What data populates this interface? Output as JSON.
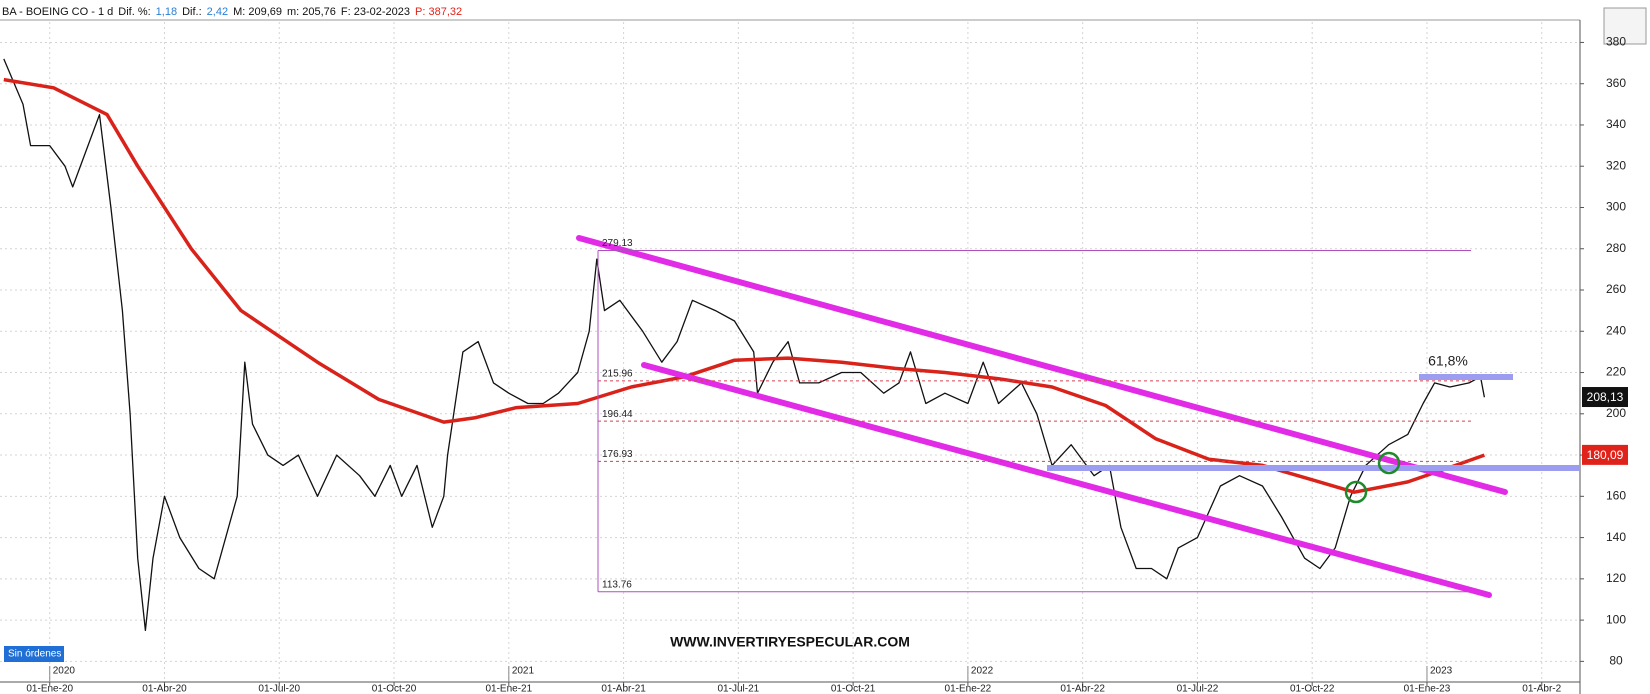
{
  "chart_data": {
    "type": "line",
    "header": [
      "BA - BOEING CO - 1 d",
      "Dif. %:",
      "1,18",
      "Dif.:",
      "2,42",
      "M: 209,69",
      "m: 205,76",
      "F: 23-02-2023",
      "P: 387,32"
    ],
    "xlim": [
      -1.3,
      40
    ],
    "xticks": [
      {
        "value": 0,
        "label": "01-Ene-20"
      },
      {
        "value": 3,
        "label": "01-Abr-20"
      },
      {
        "value": 6,
        "label": "01-Jul-20"
      },
      {
        "value": 9,
        "label": "01-Oct-20"
      },
      {
        "value": 12,
        "label": "01-Ene-21"
      },
      {
        "value": 15,
        "label": "01-Abr-21"
      },
      {
        "value": 18,
        "label": "01-Jul-21"
      },
      {
        "value": 21,
        "label": "01-Oct-21"
      },
      {
        "value": 24,
        "label": "01-Ene-22"
      },
      {
        "value": 27,
        "label": "01-Abr-22"
      },
      {
        "value": 30,
        "label": "01-Jul-22"
      },
      {
        "value": 33,
        "label": "01-Oct-22"
      },
      {
        "value": 36,
        "label": "01-Ene-23"
      },
      {
        "value": 39,
        "label": "01-Abr-2"
      }
    ],
    "year_ticks": [
      {
        "value": 0,
        "label": "2020"
      },
      {
        "value": 12,
        "label": "2021"
      },
      {
        "value": 24,
        "label": "2022"
      },
      {
        "value": 36,
        "label": "2023"
      }
    ],
    "ylim": [
      70,
      396.5
    ],
    "yticks": [
      80,
      100,
      120,
      140,
      160,
      180,
      200,
      220,
      240,
      260,
      280,
      300,
      320,
      340,
      360,
      380
    ],
    "grid": true,
    "series": [
      {
        "color": "#111111",
        "x": [
          -1.2,
          -0.7,
          -0.5,
          0,
          0.4,
          0.6,
          0.9,
          1.3,
          1.6,
          1.9,
          2.1,
          2.3,
          2.5,
          2.7,
          3.0,
          3.4,
          3.9,
          4.3,
          4.6,
          4.9,
          5.1,
          5.3,
          5.7,
          6.1,
          6.5,
          7.0,
          7.5,
          8.1,
          8.5,
          8.9,
          9.2,
          9.6,
          10.0,
          10.3,
          10.4,
          10.8,
          11.2,
          11.6,
          12.0,
          12.5,
          12.9,
          13.3,
          13.8,
          14.1,
          14.3,
          14.5,
          14.9,
          15.5,
          16.0,
          16.4,
          16.8,
          17.4,
          17.9,
          18.4,
          18.5,
          18.9,
          19.3,
          19.6,
          20.1,
          20.7,
          21.2,
          21.8,
          22.2,
          22.5,
          22.9,
          23.4,
          24.0,
          24.4,
          24.8,
          25.4,
          25.8,
          26.2,
          26.7,
          27.3,
          27.7,
          28.0,
          28.4,
          28.8,
          29.2,
          29.5,
          30.0,
          30.6,
          31.1,
          31.7,
          32.2,
          32.8,
          33.2,
          33.6,
          34.0,
          34.4,
          35.0,
          35.5,
          35.9,
          36.2,
          36.6,
          37.1,
          37.4,
          37.5
        ],
        "values": [
          372,
          350,
          330,
          330,
          320,
          310,
          325,
          345,
          300,
          250,
          200,
          130,
          95,
          130,
          160,
          140,
          125,
          120,
          140,
          160,
          225,
          195,
          180,
          175,
          180,
          160,
          180,
          170,
          160,
          175,
          160,
          175,
          145,
          160,
          180,
          230,
          235,
          215,
          210,
          205,
          205,
          210,
          220,
          240,
          275,
          250,
          255,
          240,
          225,
          235,
          255,
          250,
          245,
          230,
          210,
          225,
          235,
          215,
          215,
          220,
          220,
          210,
          215,
          230,
          205,
          210,
          205,
          225,
          205,
          215,
          200,
          175,
          185,
          170,
          175,
          145,
          125,
          125,
          120,
          135,
          140,
          165,
          170,
          165,
          150,
          130,
          125,
          135,
          160,
          175,
          185,
          190,
          205,
          215,
          213,
          215,
          218,
          208
        ]
      },
      {
        "color": "#d9231a",
        "x": [
          -1.2,
          0.1,
          1.5,
          2.3,
          3.7,
          5.0,
          7.0,
          8.6,
          10.3,
          11.1,
          12.2,
          13.8,
          15.2,
          16.6,
          17.9,
          19.3,
          20.7,
          22.1,
          23.4,
          24.8,
          26.2,
          27.6,
          28.9,
          30.3,
          31.7,
          33.0,
          34.1,
          35.5,
          36.6,
          37.5
        ],
        "values": [
          362,
          358,
          345,
          320,
          280,
          250,
          225,
          207,
          196,
          198,
          203,
          205,
          213,
          218,
          226,
          227,
          225,
          222,
          220,
          217,
          213,
          204,
          188,
          178,
          175,
          168,
          162,
          167,
          174,
          180
        ]
      }
    ],
    "fib_levels": [
      {
        "value": 279.13,
        "label": "279.13"
      },
      {
        "value": 215.96,
        "label": "215.96"
      },
      {
        "value": 196.44,
        "label": "196.44"
      },
      {
        "value": 176.93,
        "label": "176.93"
      },
      {
        "value": 113.76,
        "label": "113.76"
      }
    ],
    "last_price": {
      "value": 208.13,
      "label": "208,13"
    },
    "ma_last": {
      "value": 180.09,
      "label": "180,09"
    },
    "annotation": "61,8%",
    "watermark": "WWW.INVERTIRYESPECULAR.COM",
    "status": "Sin órdenes"
  }
}
